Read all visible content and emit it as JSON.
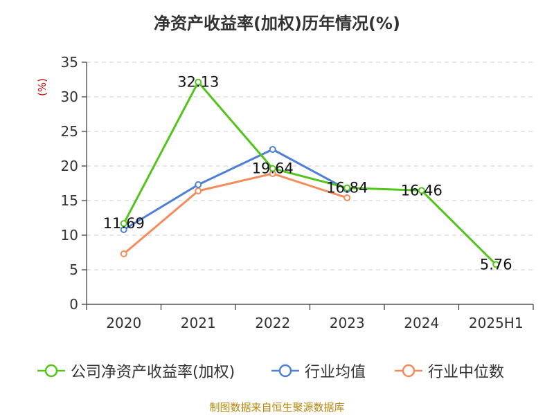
{
  "title": "净资产收益率(加权)历年情况(%)",
  "footer": "制图数据来自恒生聚源数据库",
  "colors": {
    "company": "#52c41a",
    "industry_avg": "#4e7fd8",
    "industry_median": "#f58a5a",
    "grid": "#cccccc",
    "axis": "#333333",
    "ylabel": "#cc0000"
  },
  "chart_data": {
    "type": "line",
    "title": "净资产收益率(加权)历年情况(%)",
    "xlabel": "",
    "ylabel": "(%)",
    "categories": [
      "2020",
      "2021",
      "2022",
      "2023",
      "2024",
      "2025H1"
    ],
    "ylim": [
      0,
      35
    ],
    "yticks": [
      0,
      5,
      10,
      15,
      20,
      25,
      30,
      35
    ],
    "grid": true,
    "legend_position": "bottom",
    "series": [
      {
        "name": "公司净资产收益率(加权)",
        "color": "#52c41a",
        "values": [
          11.69,
          32.13,
          19.64,
          16.84,
          16.46,
          5.76
        ],
        "data_labels": [
          "11.69",
          "32.13",
          "19.64",
          "16.84",
          "16.46",
          "5.76"
        ]
      },
      {
        "name": "行业均值",
        "color": "#4e7fd8",
        "values": [
          10.8,
          17.3,
          22.4,
          16.6,
          null,
          null
        ]
      },
      {
        "name": "行业中位数",
        "color": "#f58a5a",
        "values": [
          7.3,
          16.4,
          18.9,
          15.4,
          null,
          null
        ]
      }
    ]
  },
  "legend": [
    {
      "label": "公司净资产收益率(加权)",
      "color": "#52c41a"
    },
    {
      "label": "行业均值",
      "color": "#4e7fd8"
    },
    {
      "label": "行业中位数",
      "color": "#f58a5a"
    }
  ]
}
